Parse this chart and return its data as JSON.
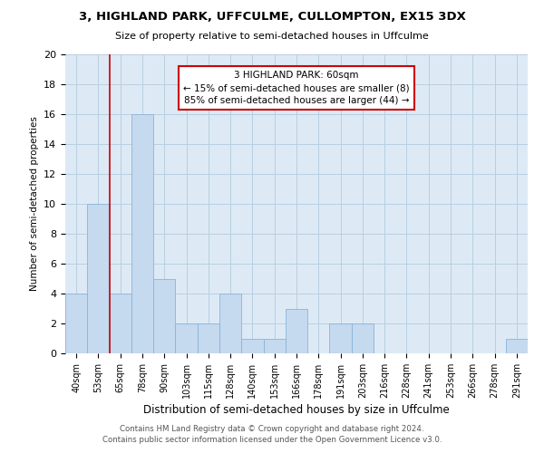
{
  "title": "3, HIGHLAND PARK, UFFCULME, CULLOMPTON, EX15 3DX",
  "subtitle": "Size of property relative to semi-detached houses in Uffculme",
  "xlabel": "Distribution of semi-detached houses by size in Uffculme",
  "ylabel": "Number of semi-detached properties",
  "footer1": "Contains HM Land Registry data © Crown copyright and database right 2024.",
  "footer2": "Contains public sector information licensed under the Open Government Licence v3.0.",
  "categories": [
    "40sqm",
    "53sqm",
    "65sqm",
    "78sqm",
    "90sqm",
    "103sqm",
    "115sqm",
    "128sqm",
    "140sqm",
    "153sqm",
    "166sqm",
    "178sqm",
    "191sqm",
    "203sqm",
    "216sqm",
    "228sqm",
    "241sqm",
    "253sqm",
    "266sqm",
    "278sqm",
    "291sqm"
  ],
  "values": [
    4,
    10,
    4,
    16,
    5,
    2,
    2,
    4,
    1,
    1,
    3,
    0,
    2,
    2,
    0,
    0,
    0,
    0,
    0,
    0,
    1
  ],
  "bar_color": "#c5d9ef",
  "bar_edge_color": "#8ab4d8",
  "grid_color": "#b8cfe0",
  "background_color": "#ddeaf6",
  "property_line_x": 2.0,
  "annotation_text1": "3 HIGHLAND PARK: 60sqm",
  "annotation_text2": "← 15% of semi-detached houses are smaller (8)",
  "annotation_text3": "85% of semi-detached houses are larger (44) →",
  "annotation_box_color": "#ffffff",
  "annotation_box_edge_color": "#cc0000",
  "property_line_color": "#cc0000",
  "ylim": [
    0,
    20
  ],
  "yticks": [
    0,
    2,
    4,
    6,
    8,
    10,
    12,
    14,
    16,
    18,
    20
  ]
}
